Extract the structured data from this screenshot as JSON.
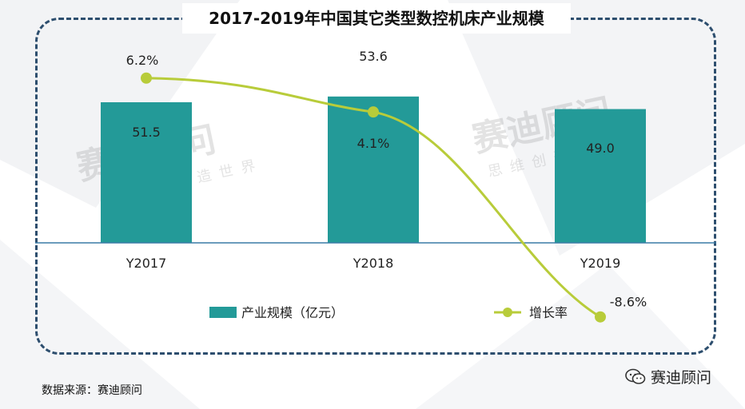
{
  "chart_data": {
    "type": "bar",
    "title": "2017-2019年中国其它类型数控机床产业规模",
    "categories": [
      "Y2017",
      "Y2018",
      "Y2019"
    ],
    "series": [
      {
        "name": "产业规模（亿元）",
        "type": "bar",
        "values": [
          51.5,
          53.6,
          49.0
        ],
        "labels": [
          "51.5",
          "53.6",
          "49.0"
        ],
        "color": "#239a98"
      },
      {
        "name": "增长率",
        "type": "line",
        "values": [
          6.2,
          4.1,
          -8.6
        ],
        "labels": [
          "6.2%",
          "4.1%",
          "-8.6%"
        ],
        "color": "#b8cc3a"
      }
    ],
    "ylim_bar": [
      0,
      70
    ],
    "ylim_line": [
      -10,
      10
    ],
    "grid": false,
    "legend": "bottom"
  },
  "source": "数据来源：赛迪顾问",
  "watermark": {
    "brand": "赛迪顾问",
    "slogan": "思维创造世界"
  },
  "wechat_label": "赛迪顾问",
  "colors": {
    "frame": "#2d4e6e",
    "axis": "#3a7ca5"
  }
}
